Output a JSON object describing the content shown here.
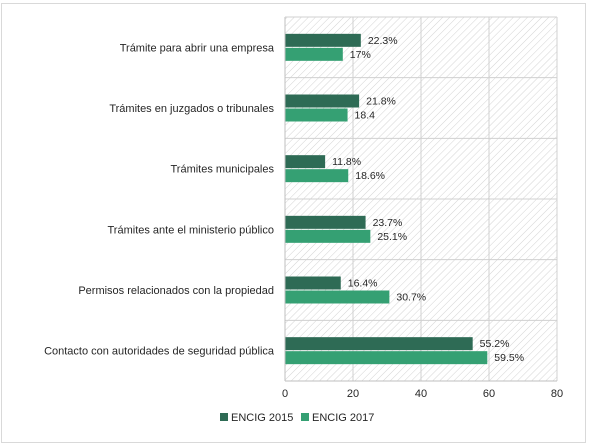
{
  "chart_data": {
    "type": "bar",
    "orientation": "horizontal",
    "categories": [
      "Trámite para abrir una empresa",
      "Trámites en juzgados o tribunales",
      "Trámites municipales",
      "Trámites ante el ministerio público",
      "Permisos relacionados con la propiedad",
      "Contacto con autoridades de seguridad pública"
    ],
    "series": [
      {
        "name": "ENCIG 2015",
        "color": "#2e6b55",
        "values": [
          22.3,
          21.8,
          11.8,
          23.7,
          16.4,
          55.2
        ],
        "labels": [
          "22.3%",
          "21.8%",
          "11.8%",
          "23.7%",
          "16.4%",
          "55.2%"
        ]
      },
      {
        "name": "ENCIG 2017",
        "color": "#35a073",
        "values": [
          17,
          18.4,
          18.6,
          25.1,
          30.7,
          59.5
        ],
        "labels": [
          "17%",
          "18.4",
          "18.6%",
          "25.1%",
          "30.7%",
          "59.5%"
        ]
      }
    ],
    "xlim": [
      0,
      80
    ],
    "xticks": [
      "0",
      "20",
      "40",
      "60",
      "80"
    ],
    "grid": true,
    "plot_background": "hatched",
    "legend_position": "bottom",
    "title": "",
    "xlabel": "",
    "ylabel": ""
  }
}
